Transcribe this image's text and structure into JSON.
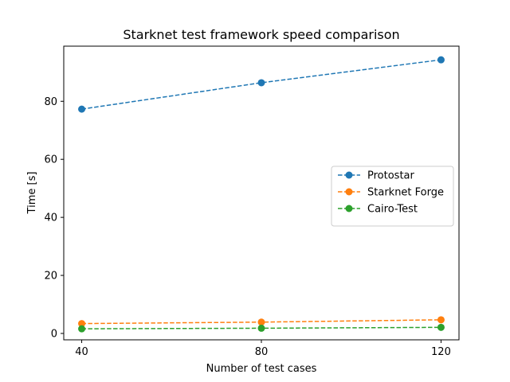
{
  "chart_data": {
    "type": "line",
    "title": "Starknet test framework speed comparison",
    "xlabel": "Number of test cases",
    "ylabel": "Time [s]",
    "x": [
      40,
      80,
      120
    ],
    "xticks": [
      40,
      80,
      120
    ],
    "yticks": [
      0,
      20,
      40,
      60,
      80
    ],
    "xlim": [
      36,
      124
    ],
    "ylim": [
      -2.2,
      99.0
    ],
    "grid": false,
    "legend_position": "center-right",
    "line_style": "dashed",
    "marker": "circle",
    "series": [
      {
        "name": "Protostar",
        "color": "#1f77b4",
        "values": [
          77.3,
          86.4,
          94.3
        ]
      },
      {
        "name": "Starknet Forge",
        "color": "#ff7f0e",
        "values": [
          3.4,
          3.9,
          4.7
        ]
      },
      {
        "name": "Cairo-Test",
        "color": "#2ca02c",
        "values": [
          1.6,
          1.8,
          2.1
        ]
      }
    ]
  }
}
